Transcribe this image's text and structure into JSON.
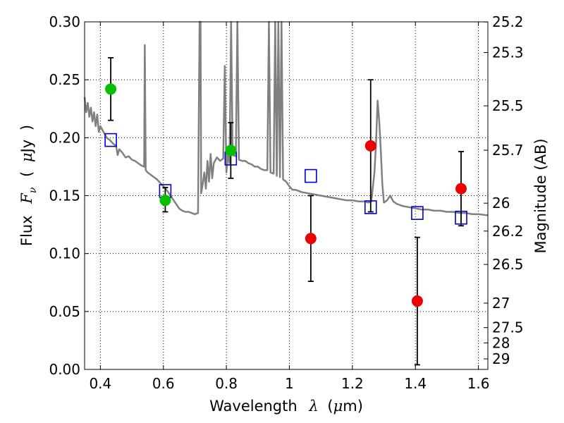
{
  "chart_data": {
    "type": "scatter",
    "xlabel_parts": [
      "Wavelength",
      "λ",
      "(",
      "μ",
      "m)"
    ],
    "ylabel_parts": [
      "Flux",
      "F",
      "ν",
      "(",
      "μ",
      "Jy",
      ")"
    ],
    "y2label": "Magnitude (AB)",
    "xlim": [
      0.35,
      1.63
    ],
    "ylim": [
      0.0,
      0.3
    ],
    "x_ticks": [
      0.4,
      0.6,
      0.8,
      1.0,
      1.2,
      1.4,
      1.6
    ],
    "x_tick_labels": [
      "0.4",
      "0.6",
      "0.8",
      "1",
      "1.2",
      "1.4",
      "1.6"
    ],
    "y_ticks": [
      0.0,
      0.05,
      0.1,
      0.15,
      0.2,
      0.25,
      0.3
    ],
    "y_tick_labels": [
      "0.00",
      "0.05",
      "0.10",
      "0.15",
      "0.20",
      "0.25",
      "0.30"
    ],
    "y2_ticks": [
      {
        "label": "25.2",
        "flux": 0.2999
      },
      {
        "label": "25.3",
        "flux": 0.2735
      },
      {
        "label": "25.5",
        "flux": 0.2275
      },
      {
        "label": "25.7",
        "flux": 0.1892
      },
      {
        "label": "26",
        "flux": 0.1435
      },
      {
        "label": "26.2",
        "flux": 0.1194
      },
      {
        "label": "26.5",
        "flux": 0.0906
      },
      {
        "label": "27",
        "flux": 0.0572
      },
      {
        "label": "27.5",
        "flux": 0.0361
      },
      {
        "label": "28",
        "flux": 0.0229
      },
      {
        "label": "29",
        "flux": 0.0091
      }
    ],
    "grid": true,
    "series": [
      {
        "kind": "model_sed",
        "color": "#808080",
        "points": [
          [
            0.35,
            0.235
          ],
          [
            0.355,
            0.222
          ],
          [
            0.36,
            0.23
          ],
          [
            0.365,
            0.218
          ],
          [
            0.37,
            0.226
          ],
          [
            0.375,
            0.214
          ],
          [
            0.38,
            0.222
          ],
          [
            0.385,
            0.21
          ],
          [
            0.39,
            0.22
          ],
          [
            0.395,
            0.205
          ],
          [
            0.4,
            0.21
          ],
          [
            0.41,
            0.205
          ],
          [
            0.42,
            0.2
          ],
          [
            0.43,
            0.198
          ],
          [
            0.44,
            0.195
          ],
          [
            0.45,
            0.193
          ],
          [
            0.455,
            0.185
          ],
          [
            0.46,
            0.19
          ],
          [
            0.47,
            0.187
          ],
          [
            0.48,
            0.183
          ],
          [
            0.49,
            0.184
          ],
          [
            0.5,
            0.181
          ],
          [
            0.51,
            0.18
          ],
          [
            0.52,
            0.178
          ],
          [
            0.53,
            0.176
          ],
          [
            0.539,
            0.175
          ],
          [
            0.541,
            0.28
          ],
          [
            0.544,
            0.172
          ],
          [
            0.55,
            0.17
          ],
          [
            0.56,
            0.168
          ],
          [
            0.57,
            0.166
          ],
          [
            0.58,
            0.164
          ],
          [
            0.59,
            0.161
          ],
          [
            0.6,
            0.158
          ],
          [
            0.61,
            0.155
          ],
          [
            0.62,
            0.151
          ],
          [
            0.63,
            0.147
          ],
          [
            0.64,
            0.143
          ],
          [
            0.65,
            0.139
          ],
          [
            0.66,
            0.137
          ],
          [
            0.67,
            0.136
          ],
          [
            0.68,
            0.136
          ],
          [
            0.69,
            0.135
          ],
          [
            0.7,
            0.134
          ],
          [
            0.71,
            0.135
          ],
          [
            0.715,
            0.3
          ],
          [
            0.718,
            0.3
          ],
          [
            0.72,
            0.152
          ],
          [
            0.725,
            0.16
          ],
          [
            0.73,
            0.17
          ],
          [
            0.735,
            0.156
          ],
          [
            0.74,
            0.18
          ],
          [
            0.745,
            0.162
          ],
          [
            0.75,
            0.186
          ],
          [
            0.755,
            0.165
          ],
          [
            0.76,
            0.178
          ],
          [
            0.77,
            0.183
          ],
          [
            0.78,
            0.18
          ],
          [
            0.79,
            0.182
          ],
          [
            0.795,
            0.262
          ],
          [
            0.8,
            0.17
          ],
          [
            0.805,
            0.185
          ],
          [
            0.81,
            0.178
          ],
          [
            0.815,
            0.3
          ],
          [
            0.82,
            0.185
          ],
          [
            0.83,
            0.184
          ],
          [
            0.835,
            0.3
          ],
          [
            0.84,
            0.181
          ],
          [
            0.85,
            0.18
          ],
          [
            0.86,
            0.18
          ],
          [
            0.87,
            0.178
          ],
          [
            0.88,
            0.177
          ],
          [
            0.89,
            0.175
          ],
          [
            0.9,
            0.175
          ],
          [
            0.91,
            0.173
          ],
          [
            0.92,
            0.172
          ],
          [
            0.93,
            0.172
          ],
          [
            0.935,
            0.3
          ],
          [
            0.94,
            0.17
          ],
          [
            0.95,
            0.169
          ],
          [
            0.955,
            0.3
          ],
          [
            0.96,
            0.167
          ],
          [
            0.965,
            0.3
          ],
          [
            0.97,
            0.166
          ],
          [
            0.975,
            0.3
          ],
          [
            0.98,
            0.164
          ],
          [
            0.99,
            0.162
          ],
          [
            1.0,
            0.158
          ],
          [
            1.01,
            0.155
          ],
          [
            1.02,
            0.155
          ],
          [
            1.04,
            0.153
          ],
          [
            1.06,
            0.152
          ],
          [
            1.08,
            0.151
          ],
          [
            1.1,
            0.15
          ],
          [
            1.12,
            0.149
          ],
          [
            1.14,
            0.148
          ],
          [
            1.16,
            0.147
          ],
          [
            1.18,
            0.146
          ],
          [
            1.2,
            0.146
          ],
          [
            1.22,
            0.145
          ],
          [
            1.24,
            0.145
          ],
          [
            1.25,
            0.144
          ],
          [
            1.26,
            0.145
          ],
          [
            1.27,
            0.17
          ],
          [
            1.275,
            0.195
          ],
          [
            1.28,
            0.232
          ],
          [
            1.285,
            0.215
          ],
          [
            1.29,
            0.19
          ],
          [
            1.295,
            0.16
          ],
          [
            1.3,
            0.144
          ],
          [
            1.31,
            0.146
          ],
          [
            1.32,
            0.15
          ],
          [
            1.33,
            0.145
          ],
          [
            1.34,
            0.143
          ],
          [
            1.36,
            0.141
          ],
          [
            1.38,
            0.14
          ],
          [
            1.4,
            0.139
          ],
          [
            1.42,
            0.138
          ],
          [
            1.44,
            0.138
          ],
          [
            1.46,
            0.137
          ],
          [
            1.48,
            0.137
          ],
          [
            1.5,
            0.136
          ],
          [
            1.52,
            0.136
          ],
          [
            1.54,
            0.135
          ],
          [
            1.56,
            0.135
          ],
          [
            1.58,
            0.134
          ],
          [
            1.6,
            0.134
          ],
          [
            1.63,
            0.133
          ]
        ]
      },
      {
        "kind": "model_band_flux",
        "color": "#0000cc",
        "points": [
          [
            0.433,
            0.198
          ],
          [
            0.606,
            0.154
          ],
          [
            0.814,
            0.182
          ],
          [
            1.068,
            0.167
          ],
          [
            1.258,
            0.14
          ],
          [
            1.406,
            0.135
          ],
          [
            1.545,
            0.131
          ]
        ]
      },
      {
        "kind": "detections",
        "color": "#00c000",
        "points": [
          {
            "x": 0.433,
            "y": 0.242,
            "lo": 0.215,
            "hi": 0.269
          },
          {
            "x": 0.606,
            "y": 0.146,
            "lo": 0.136,
            "hi": 0.157
          },
          {
            "x": 0.814,
            "y": 0.189,
            "lo": 0.165,
            "hi": 0.213
          }
        ]
      },
      {
        "kind": "detections",
        "color": "#ee0000",
        "points": [
          {
            "x": 1.068,
            "y": 0.113,
            "lo": 0.076,
            "hi": 0.15
          },
          {
            "x": 1.258,
            "y": 0.193,
            "lo": 0.136,
            "hi": 0.25
          },
          {
            "x": 1.406,
            "y": 0.059,
            "lo": 0.004,
            "hi": 0.114
          },
          {
            "x": 1.545,
            "y": 0.156,
            "lo": 0.124,
            "hi": 0.188
          }
        ]
      }
    ]
  }
}
